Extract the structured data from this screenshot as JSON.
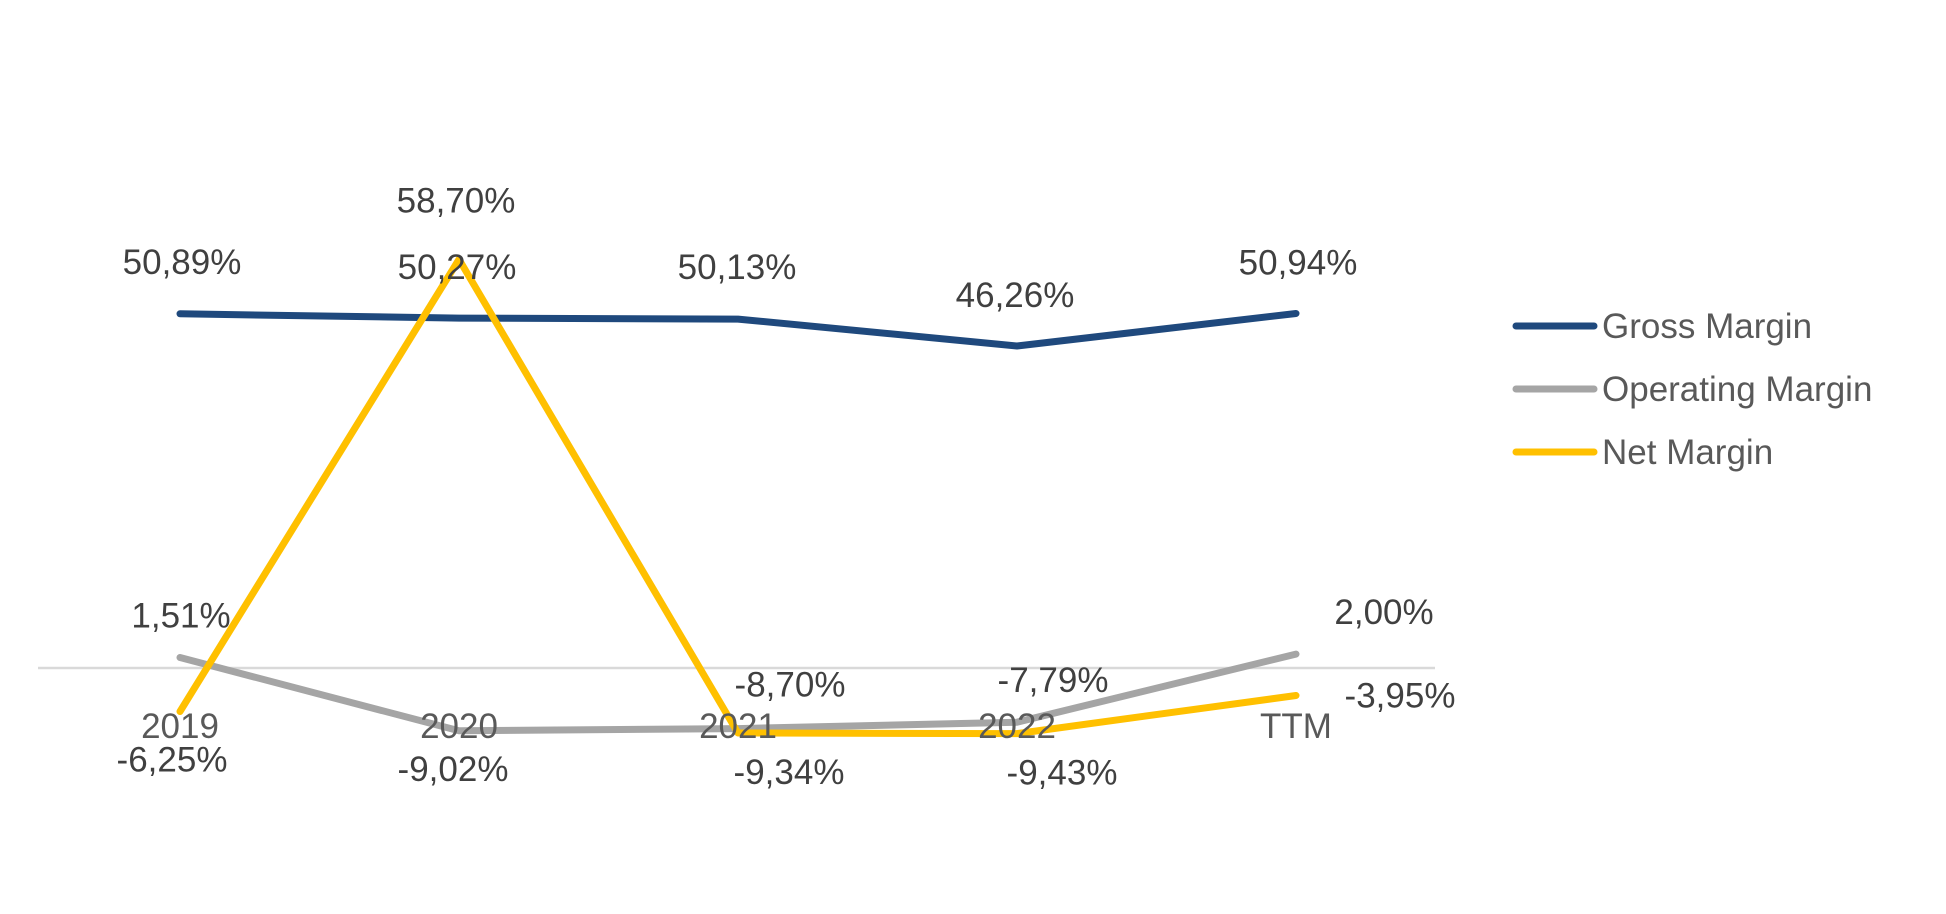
{
  "chart_data": {
    "type": "line",
    "title": "",
    "categories": [
      "2019",
      "2020",
      "2021",
      "2022",
      "TTM"
    ],
    "series": [
      {
        "name": "Gross Margin",
        "color": "#1f497d",
        "values": [
          50.89,
          50.27,
          50.13,
          46.26,
          50.94
        ],
        "labels": [
          "50,89%",
          "50,27%",
          "50,13%",
          "46,26%",
          "50,94%"
        ]
      },
      {
        "name": "Operating Margin",
        "color": "#a5a5a5",
        "values": [
          1.51,
          -9.02,
          -8.7,
          -7.79,
          2.0
        ],
        "labels": [
          "1,51%",
          "-9,02%",
          "-8,70%",
          "-7,79%",
          "2,00%"
        ]
      },
      {
        "name": "Net Margin",
        "color": "#ffc000",
        "values": [
          -6.25,
          58.7,
          -9.34,
          -9.43,
          -3.95
        ],
        "labels": [
          "-6,25%",
          "58,70%",
          "-9,34%",
          "-9,43%",
          "-3,95%"
        ]
      }
    ],
    "xlabel": "",
    "ylabel": "",
    "ylim": [
      -20,
      70
    ],
    "grid": false,
    "legend_position": "right"
  }
}
